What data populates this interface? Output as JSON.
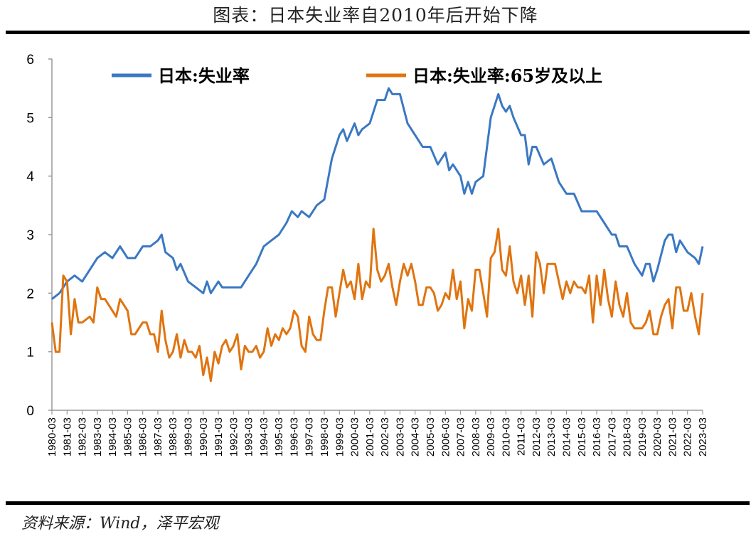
{
  "title": "图表：日本失业率自2010年后开始下降",
  "footer": "资料来源：Wind，泽平宏观",
  "chart_data": {
    "type": "line",
    "title": "图表：日本失业率自2010年后开始下降",
    "xlabel": "",
    "ylabel": "",
    "ylim": [
      0,
      6
    ],
    "yticks": [
      "0",
      "1",
      "2",
      "3",
      "4",
      "5",
      "6"
    ],
    "xlim": [
      1980,
      2023
    ],
    "xticks": [
      "1980-03",
      "1981-03",
      "1982-03",
      "1983-03",
      "1984-03",
      "1985-03",
      "1986-03",
      "1987-03",
      "1988-03",
      "1989-03",
      "1990-03",
      "1991-03",
      "1992-03",
      "1993-03",
      "1994-03",
      "1995-03",
      "1996-03",
      "1997-03",
      "1998-03",
      "1999-03",
      "2000-03",
      "2001-03",
      "2002-03",
      "2003-03",
      "2004-03",
      "2005-03",
      "2006-03",
      "2007-03",
      "2008-03",
      "2009-03",
      "2010-03",
      "2011-03",
      "2012-03",
      "2013-03",
      "2014-03",
      "2015-03",
      "2016-03",
      "2017-03",
      "2018-03",
      "2019-03",
      "2020-03",
      "2021-03",
      "2022-03",
      "2023-03"
    ],
    "grid": false,
    "legend_position": "top",
    "series": [
      {
        "name": "日本:失业率",
        "color": "#3a78c3",
        "points": [
          [
            1980,
            1.9
          ],
          [
            1980.5,
            2.0
          ],
          [
            1981,
            2.2
          ],
          [
            1981.5,
            2.3
          ],
          [
            1982,
            2.2
          ],
          [
            1982.5,
            2.4
          ],
          [
            1983,
            2.6
          ],
          [
            1983.5,
            2.7
          ],
          [
            1984,
            2.6
          ],
          [
            1984.5,
            2.8
          ],
          [
            1985,
            2.6
          ],
          [
            1985.5,
            2.6
          ],
          [
            1986,
            2.8
          ],
          [
            1986.5,
            2.8
          ],
          [
            1987,
            2.9
          ],
          [
            1987.25,
            3.0
          ],
          [
            1987.5,
            2.7
          ],
          [
            1988,
            2.6
          ],
          [
            1988.25,
            2.4
          ],
          [
            1988.5,
            2.5
          ],
          [
            1989,
            2.2
          ],
          [
            1989.5,
            2.1
          ],
          [
            1990,
            2.0
          ],
          [
            1990.25,
            2.2
          ],
          [
            1990.5,
            2.0
          ],
          [
            1991,
            2.2
          ],
          [
            1991.25,
            2.1
          ],
          [
            1992,
            2.1
          ],
          [
            1992.5,
            2.1
          ],
          [
            1993,
            2.3
          ],
          [
            1993.5,
            2.5
          ],
          [
            1994,
            2.8
          ],
          [
            1994.5,
            2.9
          ],
          [
            1995,
            3.0
          ],
          [
            1995.5,
            3.2
          ],
          [
            1995.85,
            3.4
          ],
          [
            1996.25,
            3.3
          ],
          [
            1996.5,
            3.4
          ],
          [
            1997,
            3.3
          ],
          [
            1997.5,
            3.5
          ],
          [
            1998,
            3.6
          ],
          [
            1998.5,
            4.3
          ],
          [
            1999,
            4.7
          ],
          [
            1999.25,
            4.8
          ],
          [
            1999.5,
            4.6
          ],
          [
            2000,
            4.9
          ],
          [
            2000.25,
            4.7
          ],
          [
            2000.5,
            4.8
          ],
          [
            2001,
            4.9
          ],
          [
            2001.5,
            5.3
          ],
          [
            2002,
            5.3
          ],
          [
            2002.25,
            5.5
          ],
          [
            2002.5,
            5.4
          ],
          [
            2003,
            5.4
          ],
          [
            2003.5,
            4.9
          ],
          [
            2004,
            4.7
          ],
          [
            2004.5,
            4.5
          ],
          [
            2005,
            4.5
          ],
          [
            2005.5,
            4.2
          ],
          [
            2006,
            4.4
          ],
          [
            2006.25,
            4.1
          ],
          [
            2006.5,
            4.2
          ],
          [
            2007,
            4.0
          ],
          [
            2007.25,
            3.7
          ],
          [
            2007.5,
            3.9
          ],
          [
            2007.75,
            3.7
          ],
          [
            2008,
            3.9
          ],
          [
            2008.5,
            4.0
          ],
          [
            2009,
            5.0
          ],
          [
            2009.5,
            5.4
          ],
          [
            2009.75,
            5.2
          ],
          [
            2010,
            5.1
          ],
          [
            2010.25,
            5.2
          ],
          [
            2010.5,
            5.0
          ],
          [
            2011,
            4.7
          ],
          [
            2011.25,
            4.7
          ],
          [
            2011.5,
            4.2
          ],
          [
            2011.75,
            4.5
          ],
          [
            2012,
            4.5
          ],
          [
            2012.5,
            4.2
          ],
          [
            2013,
            4.3
          ],
          [
            2013.5,
            3.9
          ],
          [
            2014,
            3.7
          ],
          [
            2014.5,
            3.7
          ],
          [
            2015,
            3.4
          ],
          [
            2015.5,
            3.4
          ],
          [
            2016,
            3.4
          ],
          [
            2016.5,
            3.2
          ],
          [
            2017,
            3.0
          ],
          [
            2017.25,
            3.0
          ],
          [
            2017.5,
            2.8
          ],
          [
            2018,
            2.8
          ],
          [
            2018.5,
            2.5
          ],
          [
            2019,
            2.3
          ],
          [
            2019.25,
            2.5
          ],
          [
            2019.5,
            2.5
          ],
          [
            2019.75,
            2.2
          ],
          [
            2020,
            2.4
          ],
          [
            2020.5,
            2.9
          ],
          [
            2020.75,
            3.0
          ],
          [
            2021,
            3.0
          ],
          [
            2021.25,
            2.7
          ],
          [
            2021.5,
            2.9
          ],
          [
            2022,
            2.7
          ],
          [
            2022.5,
            2.6
          ],
          [
            2022.75,
            2.5
          ],
          [
            2023,
            2.8
          ]
        ]
      },
      {
        "name": "日本:失业率:65岁及以上",
        "color": "#e07410",
        "points": [
          [
            1980,
            1.5
          ],
          [
            1980.25,
            1.0
          ],
          [
            1980.5,
            1.0
          ],
          [
            1980.75,
            2.3
          ],
          [
            1981,
            2.2
          ],
          [
            1981.25,
            1.3
          ],
          [
            1981.5,
            1.9
          ],
          [
            1981.75,
            1.5
          ],
          [
            1982,
            1.5
          ],
          [
            1982.5,
            1.6
          ],
          [
            1982.75,
            1.5
          ],
          [
            1983,
            2.1
          ],
          [
            1983.25,
            1.9
          ],
          [
            1983.5,
            1.9
          ],
          [
            1984,
            1.7
          ],
          [
            1984.25,
            1.6
          ],
          [
            1984.5,
            1.9
          ],
          [
            1985,
            1.7
          ],
          [
            1985.25,
            1.3
          ],
          [
            1985.5,
            1.3
          ],
          [
            1986,
            1.5
          ],
          [
            1986.25,
            1.5
          ],
          [
            1986.5,
            1.3
          ],
          [
            1986.75,
            1.3
          ],
          [
            1987,
            1.0
          ],
          [
            1987.25,
            1.7
          ],
          [
            1987.5,
            1.2
          ],
          [
            1987.75,
            0.9
          ],
          [
            1988,
            1.0
          ],
          [
            1988.25,
            1.3
          ],
          [
            1988.5,
            0.9
          ],
          [
            1988.75,
            1.2
          ],
          [
            1989,
            1.0
          ],
          [
            1989.25,
            1.0
          ],
          [
            1989.5,
            0.9
          ],
          [
            1989.75,
            1.1
          ],
          [
            1990,
            0.6
          ],
          [
            1990.25,
            0.9
          ],
          [
            1990.5,
            0.5
          ],
          [
            1990.75,
            1.0
          ],
          [
            1991,
            0.8
          ],
          [
            1991.25,
            1.1
          ],
          [
            1991.5,
            1.2
          ],
          [
            1991.75,
            1.0
          ],
          [
            1992,
            1.1
          ],
          [
            1992.25,
            1.3
          ],
          [
            1992.5,
            0.7
          ],
          [
            1992.75,
            1.1
          ],
          [
            1993,
            1.0
          ],
          [
            1993.25,
            1.0
          ],
          [
            1993.5,
            1.1
          ],
          [
            1993.75,
            0.9
          ],
          [
            1994,
            1.0
          ],
          [
            1994.25,
            1.4
          ],
          [
            1994.5,
            1.1
          ],
          [
            1994.75,
            1.3
          ],
          [
            1995,
            1.2
          ],
          [
            1995.25,
            1.4
          ],
          [
            1995.5,
            1.3
          ],
          [
            1995.75,
            1.4
          ],
          [
            1996,
            1.7
          ],
          [
            1996.25,
            1.6
          ],
          [
            1996.5,
            1.1
          ],
          [
            1996.75,
            1.0
          ],
          [
            1997,
            1.6
          ],
          [
            1997.25,
            1.3
          ],
          [
            1997.5,
            1.2
          ],
          [
            1997.75,
            1.2
          ],
          [
            1998,
            1.7
          ],
          [
            1998.25,
            2.1
          ],
          [
            1998.5,
            2.1
          ],
          [
            1998.75,
            1.6
          ],
          [
            1999,
            2.0
          ],
          [
            1999.25,
            2.4
          ],
          [
            1999.5,
            2.1
          ],
          [
            1999.75,
            2.2
          ],
          [
            2000,
            1.9
          ],
          [
            2000.25,
            2.5
          ],
          [
            2000.5,
            1.9
          ],
          [
            2000.75,
            2.2
          ],
          [
            2001,
            2.1
          ],
          [
            2001.25,
            3.1
          ],
          [
            2001.5,
            2.4
          ],
          [
            2001.75,
            2.2
          ],
          [
            2002,
            2.3
          ],
          [
            2002.25,
            2.5
          ],
          [
            2002.5,
            2.1
          ],
          [
            2002.75,
            1.8
          ],
          [
            2003,
            2.2
          ],
          [
            2003.25,
            2.5
          ],
          [
            2003.5,
            2.3
          ],
          [
            2003.75,
            2.5
          ],
          [
            2004,
            2.2
          ],
          [
            2004.25,
            1.8
          ],
          [
            2004.5,
            1.8
          ],
          [
            2004.75,
            2.1
          ],
          [
            2005,
            2.1
          ],
          [
            2005.25,
            2.0
          ],
          [
            2005.5,
            1.7
          ],
          [
            2005.75,
            1.8
          ],
          [
            2006,
            2.0
          ],
          [
            2006.25,
            1.9
          ],
          [
            2006.5,
            2.4
          ],
          [
            2006.75,
            1.9
          ],
          [
            2007,
            2.2
          ],
          [
            2007.25,
            1.4
          ],
          [
            2007.5,
            1.9
          ],
          [
            2007.75,
            1.7
          ],
          [
            2008,
            2.4
          ],
          [
            2008.25,
            2.4
          ],
          [
            2008.5,
            2.0
          ],
          [
            2008.75,
            1.6
          ],
          [
            2009,
            2.6
          ],
          [
            2009.25,
            2.7
          ],
          [
            2009.5,
            3.1
          ],
          [
            2009.75,
            2.4
          ],
          [
            2010,
            2.3
          ],
          [
            2010.25,
            2.8
          ],
          [
            2010.5,
            2.2
          ],
          [
            2010.75,
            2.0
          ],
          [
            2011,
            2.3
          ],
          [
            2011.25,
            1.8
          ],
          [
            2011.5,
            2.3
          ],
          [
            2011.75,
            1.6
          ],
          [
            2012,
            2.7
          ],
          [
            2012.25,
            2.5
          ],
          [
            2012.5,
            2.0
          ],
          [
            2012.75,
            2.5
          ],
          [
            2013,
            2.5
          ],
          [
            2013.25,
            2.5
          ],
          [
            2013.5,
            2.2
          ],
          [
            2013.75,
            1.9
          ],
          [
            2014,
            2.2
          ],
          [
            2014.25,
            2.0
          ],
          [
            2014.5,
            2.2
          ],
          [
            2014.75,
            2.1
          ],
          [
            2015,
            2.1
          ],
          [
            2015.25,
            2.0
          ],
          [
            2015.5,
            2.3
          ],
          [
            2015.75,
            1.5
          ],
          [
            2016,
            2.3
          ],
          [
            2016.25,
            1.8
          ],
          [
            2016.5,
            2.4
          ],
          [
            2016.75,
            1.9
          ],
          [
            2017,
            1.6
          ],
          [
            2017.25,
            2.2
          ],
          [
            2017.5,
            1.8
          ],
          [
            2017.75,
            1.6
          ],
          [
            2018,
            2.0
          ],
          [
            2018.25,
            1.5
          ],
          [
            2018.5,
            1.4
          ],
          [
            2018.75,
            1.4
          ],
          [
            2019,
            1.4
          ],
          [
            2019.25,
            1.5
          ],
          [
            2019.5,
            1.7
          ],
          [
            2019.75,
            1.3
          ],
          [
            2020,
            1.3
          ],
          [
            2020.25,
            1.6
          ],
          [
            2020.5,
            1.8
          ],
          [
            2020.75,
            1.9
          ],
          [
            2021,
            1.4
          ],
          [
            2021.25,
            2.1
          ],
          [
            2021.5,
            2.1
          ],
          [
            2021.75,
            1.7
          ],
          [
            2022,
            1.7
          ],
          [
            2022.25,
            2.0
          ],
          [
            2022.5,
            1.6
          ],
          [
            2022.75,
            1.3
          ],
          [
            2023,
            2.0
          ]
        ]
      }
    ]
  }
}
